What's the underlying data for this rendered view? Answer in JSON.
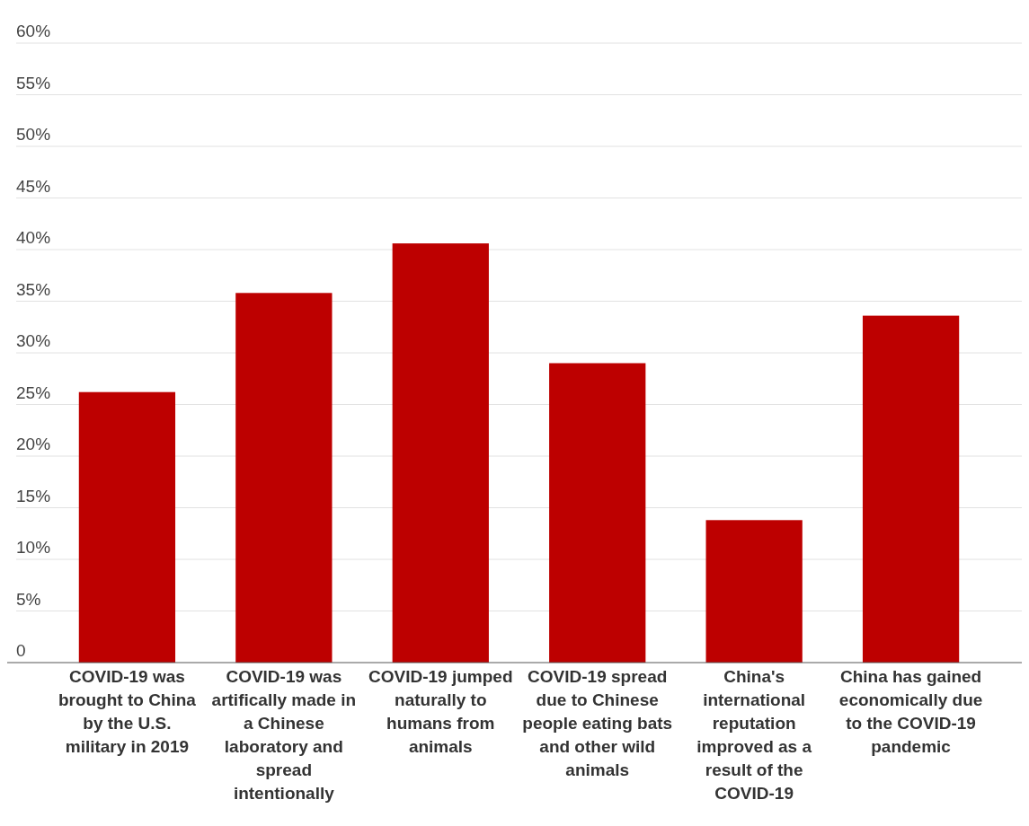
{
  "chart_data": {
    "type": "bar",
    "categories": [
      "COVID-19 was brought to China by the U.S. military in 2019",
      "COVID-19 was artifically made in a Chinese laboratory and spread intentionally",
      "COVID-19 jumped naturally to humans from animals",
      "COVID-19 spread due to Chinese people eating bats and other wild animals",
      "China's international reputation improved as a result of the COVID-19",
      "China has gained economically due to the COVID-19 pandemic"
    ],
    "values": [
      26.2,
      35.8,
      40.6,
      29.0,
      13.8,
      33.6
    ],
    "color": "#bd0000",
    "ylim": [
      0,
      60
    ],
    "yticks": [
      {
        "value": 0,
        "label": "0"
      },
      {
        "value": 5,
        "label": "5%"
      },
      {
        "value": 10,
        "label": "10%"
      },
      {
        "value": 15,
        "label": "15%"
      },
      {
        "value": 20,
        "label": "20%"
      },
      {
        "value": 25,
        "label": "25%"
      },
      {
        "value": 30,
        "label": "30%"
      },
      {
        "value": 35,
        "label": "35%"
      },
      {
        "value": 40,
        "label": "40%"
      },
      {
        "value": 45,
        "label": "45%"
      },
      {
        "value": 50,
        "label": "50%"
      },
      {
        "value": 55,
        "label": "55%"
      },
      {
        "value": 60,
        "label": "60%"
      }
    ],
    "grid": "y"
  }
}
